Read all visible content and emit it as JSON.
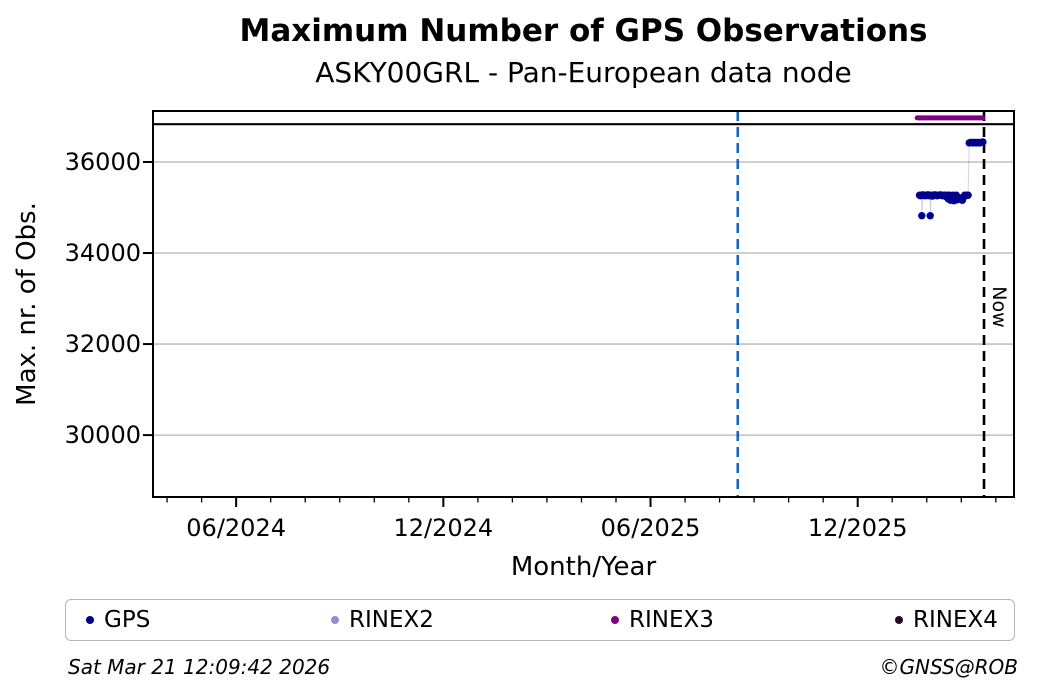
{
  "footer": {
    "timestamp": "Sat Mar 21 12:09:42 2026",
    "credit": "©GNSS@ROB"
  },
  "chart_data": {
    "type": "scatter",
    "title": "Maximum Number of GPS Observations",
    "subtitle": "ASKY00GRL - Pan-European data node",
    "xlabel": "Month/Year",
    "ylabel": "Max. nr. of Obs.",
    "legend_position": "bottom",
    "grid": true,
    "x_axis": {
      "min": "2024-03-19",
      "max": "2026-04-17",
      "minor_tick_interval_months": 1,
      "major_ticks": [
        {
          "date": "2024-06-01",
          "label": "06/2024"
        },
        {
          "date": "2024-12-01",
          "label": "12/2024"
        },
        {
          "date": "2025-06-01",
          "label": "06/2025"
        },
        {
          "date": "2025-12-01",
          "label": "12/2025"
        }
      ]
    },
    "y_axis": {
      "min": 28640,
      "max": 37120,
      "ticks": [
        {
          "value": 30000,
          "label": "30000"
        },
        {
          "value": 32000,
          "label": "32000"
        },
        {
          "value": 34000,
          "label": "34000"
        },
        {
          "value": 36000,
          "label": "36000"
        }
      ],
      "gridline_color": "#b3b3b3"
    },
    "max_line": {
      "value": 36830,
      "color": "#000000",
      "style": "solid"
    },
    "event_line": {
      "date": "2025-08-17",
      "color": "#1565c0",
      "style": "dashed"
    },
    "now_line": {
      "date": "2026-03-21",
      "label": "Now",
      "color": "#000000",
      "style": "dashed"
    },
    "connector_color": "rgba(0,0,139,0.18)",
    "series": [
      {
        "name": "GPS",
        "color": "#00008b",
        "marker_radius": 3.7,
        "points": [
          [
            "2026-01-25",
            35270
          ],
          [
            "2026-01-26",
            35260
          ],
          [
            "2026-01-27",
            35270
          ],
          [
            "2026-01-27",
            34820
          ],
          [
            "2026-01-28",
            35280
          ],
          [
            "2026-01-29",
            35270
          ],
          [
            "2026-01-30",
            35260
          ],
          [
            "2026-01-31",
            35270
          ],
          [
            "2026-02-01",
            35270
          ],
          [
            "2026-02-02",
            35280
          ],
          [
            "2026-02-03",
            35260
          ],
          [
            "2026-02-04",
            35270
          ],
          [
            "2026-02-04",
            34820
          ],
          [
            "2026-02-05",
            35270
          ],
          [
            "2026-02-06",
            35250
          ],
          [
            "2026-02-07",
            35270
          ],
          [
            "2026-02-08",
            35280
          ],
          [
            "2026-02-09",
            35270
          ],
          [
            "2026-02-10",
            35260
          ],
          [
            "2026-02-11",
            35270
          ],
          [
            "2026-02-12",
            35270
          ],
          [
            "2026-02-13",
            35280
          ],
          [
            "2026-02-14",
            35270
          ],
          [
            "2026-02-15",
            35260
          ],
          [
            "2026-02-16",
            35270
          ],
          [
            "2026-02-17",
            35270
          ],
          [
            "2026-02-18",
            35240
          ],
          [
            "2026-02-19",
            35270
          ],
          [
            "2026-02-20",
            35190
          ],
          [
            "2026-02-21",
            35270
          ],
          [
            "2026-02-22",
            35160
          ],
          [
            "2026-02-23",
            35200
          ],
          [
            "2026-02-24",
            35270
          ],
          [
            "2026-02-25",
            35150
          ],
          [
            "2026-02-26",
            35190
          ],
          [
            "2026-02-27",
            35270
          ],
          [
            "2026-02-28",
            35170
          ],
          [
            "2026-03-01",
            35210
          ],
          [
            "2026-03-02",
            35160
          ],
          [
            "2026-03-03",
            35230
          ],
          [
            "2026-03-04",
            35270
          ],
          [
            "2026-03-05",
            35260
          ],
          [
            "2026-03-06",
            35270
          ],
          [
            "2026-03-07",
            35270
          ],
          [
            "2026-03-08",
            36420
          ],
          [
            "2026-03-09",
            36430
          ],
          [
            "2026-03-10",
            36430
          ],
          [
            "2026-03-11",
            36420
          ],
          [
            "2026-03-12",
            36430
          ],
          [
            "2026-03-13",
            36430
          ],
          [
            "2026-03-14",
            36420
          ],
          [
            "2026-03-15",
            36430
          ],
          [
            "2026-03-16",
            36430
          ],
          [
            "2026-03-17",
            36420
          ],
          [
            "2026-03-18",
            36430
          ],
          [
            "2026-03-19",
            36430
          ],
          [
            "2026-03-20",
            36440
          ]
        ],
        "segments": []
      },
      {
        "name": "RINEX2",
        "color": "#8f8fd0",
        "marker_radius": 3.7,
        "points": [],
        "segments": []
      },
      {
        "name": "RINEX3",
        "color": "#800080",
        "marker_radius": 3.7,
        "points": [],
        "segments": [
          {
            "start": "2026-01-23",
            "end": "2026-03-20",
            "value": 36970
          }
        ]
      },
      {
        "name": "RINEX4",
        "color": "#220a22",
        "marker_radius": 3.7,
        "points": [],
        "segments": []
      }
    ]
  }
}
